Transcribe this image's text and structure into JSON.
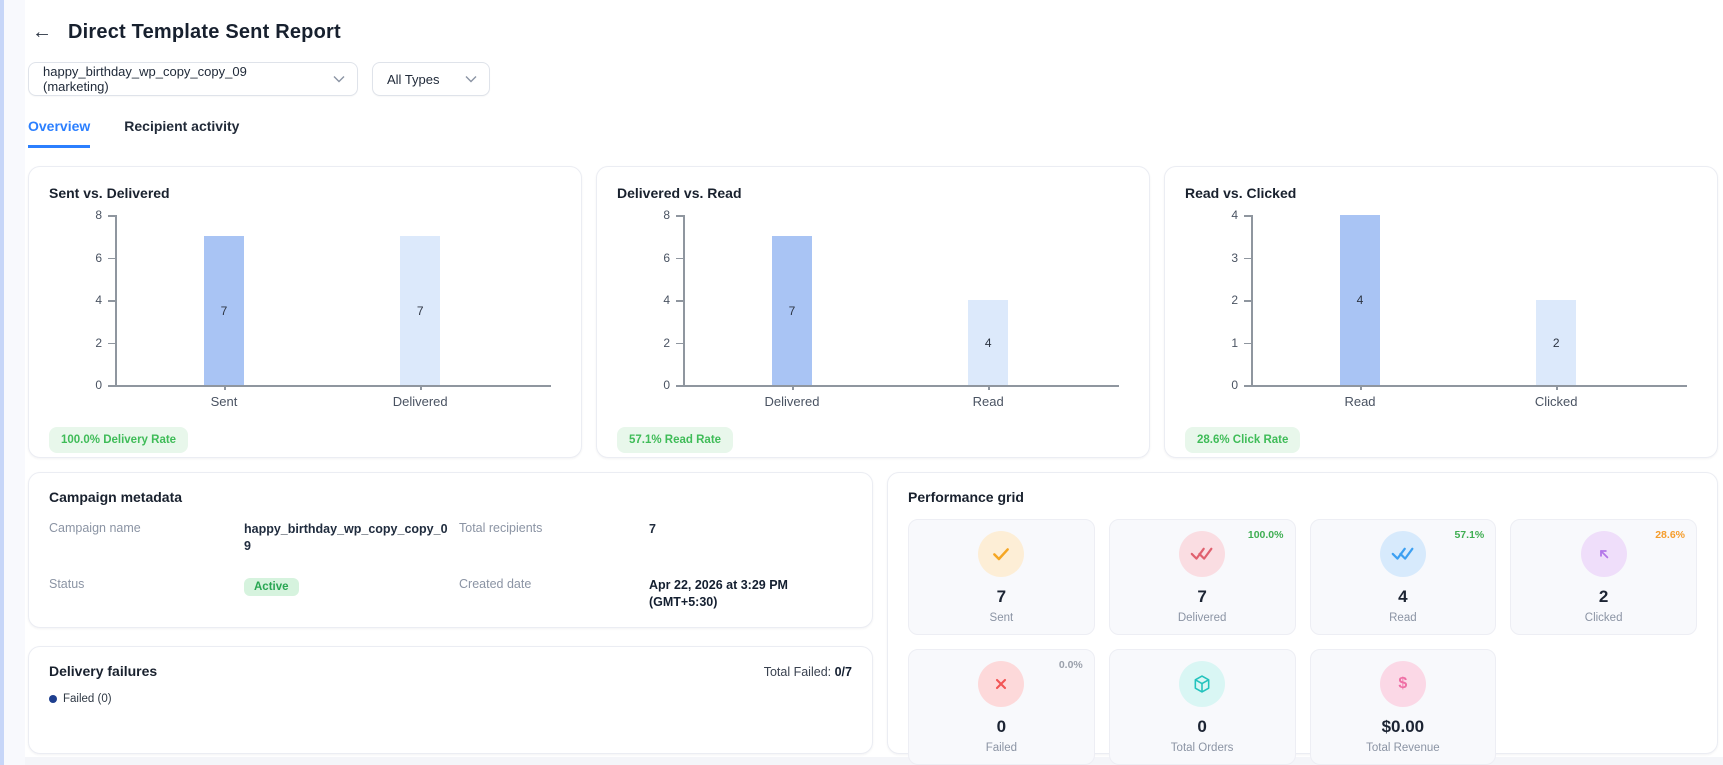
{
  "header": {
    "back_icon": "←",
    "title": "Direct Template Sent Report"
  },
  "filters": {
    "template": {
      "value": "happy_birthday_wp_copy_copy_09 (marketing)"
    },
    "type": {
      "value": "All Types"
    }
  },
  "tabs": {
    "overview": "Overview",
    "recipient_activity": "Recipient activity"
  },
  "chart_data": [
    {
      "type": "bar",
      "title": "Sent vs. Delivered",
      "categories": [
        "Sent",
        "Delivered"
      ],
      "values": [
        7,
        7
      ],
      "ylim": [
        0,
        8
      ],
      "yticks": [
        0,
        2,
        4,
        6,
        8
      ],
      "grid": false,
      "legend": "none",
      "bar_colors": [
        "#a9c4f4",
        "#dce9fb"
      ],
      "badge": "100.0% Delivery Rate"
    },
    {
      "type": "bar",
      "title": "Delivered vs. Read",
      "categories": [
        "Delivered",
        "Read"
      ],
      "values": [
        7,
        4
      ],
      "ylim": [
        0,
        8
      ],
      "yticks": [
        0,
        2,
        4,
        6,
        8
      ],
      "grid": false,
      "legend": "none",
      "bar_colors": [
        "#a9c4f4",
        "#dce9fb"
      ],
      "badge": "57.1% Read Rate"
    },
    {
      "type": "bar",
      "title": "Read vs. Clicked",
      "categories": [
        "Read",
        "Clicked"
      ],
      "values": [
        4,
        2
      ],
      "ylim": [
        0,
        4
      ],
      "yticks": [
        0,
        1,
        2,
        3,
        4
      ],
      "grid": false,
      "legend": "none",
      "bar_colors": [
        "#a9c4f4",
        "#dce9fb"
      ],
      "badge": "28.6% Click Rate"
    }
  ],
  "campaign_metadata": {
    "title": "Campaign metadata",
    "campaign_name_label": "Campaign name",
    "campaign_name_value": "happy_birthday_wp_copy_copy_09",
    "total_recipients_label": "Total recipients",
    "total_recipients_value": "7",
    "status_label": "Status",
    "status_value": "Active",
    "created_date_label": "Created date",
    "created_date_value": "Apr 22, 2026 at 3:29 PM (GMT+5:30)"
  },
  "delivery_failures": {
    "title": "Delivery failures",
    "total_failed_label": "Total Failed:",
    "total_failed_value": "0/7",
    "legend": {
      "label": "Failed (0)",
      "dot_color": "#1e3f8f"
    }
  },
  "performance_grid": {
    "title": "Performance grid",
    "cards": [
      {
        "icon": "check-icon",
        "percent": "",
        "percent_color": "",
        "value": "7",
        "label": "Sent",
        "circle_bg": "#fdeed6",
        "icon_color": "#f5a623"
      },
      {
        "icon": "double-check-icon",
        "percent": "100.0%",
        "percent_color": "#3fae52",
        "value": "7",
        "label": "Delivered",
        "circle_bg": "#fadde2",
        "icon_color": "#e0616f"
      },
      {
        "icon": "double-check-icon",
        "percent": "57.1%",
        "percent_color": "#3fae52",
        "value": "4",
        "label": "Read",
        "circle_bg": "#d7eafc",
        "icon_color": "#3da0f2"
      },
      {
        "icon": "cursor-arrow-icon",
        "percent": "28.6%",
        "percent_color": "#f59d2c",
        "value": "2",
        "label": "Clicked",
        "circle_bg": "#efdefa",
        "icon_color": "#b377e8"
      },
      {
        "icon": "x-icon",
        "percent": "0.0%",
        "percent_color": "#9aa0ab",
        "value": "0",
        "label": "Failed",
        "circle_bg": "#fdd9da",
        "icon_color": "#f25555"
      },
      {
        "icon": "cube-icon",
        "percent": "",
        "percent_color": "",
        "value": "0",
        "label": "Total Orders",
        "circle_bg": "#d9f6f4",
        "icon_color": "#23c3bd"
      },
      {
        "icon": "dollar-icon",
        "percent": "",
        "percent_color": "",
        "value": "$0.00",
        "label": "Total Revenue",
        "circle_bg": "#fbd8e6",
        "icon_color": "#ef6fa5"
      }
    ]
  },
  "colors": {
    "tab_active": "#2b7fff",
    "bar_primary": "#a9c4f4",
    "bar_secondary": "#dce9fb",
    "rate_badge_bg": "#e8f7eb",
    "rate_badge_text": "#3fbc58",
    "status_bg": "#d6f3de",
    "status_text": "#28a652",
    "left_edge_accent": "#c7d6f8"
  }
}
